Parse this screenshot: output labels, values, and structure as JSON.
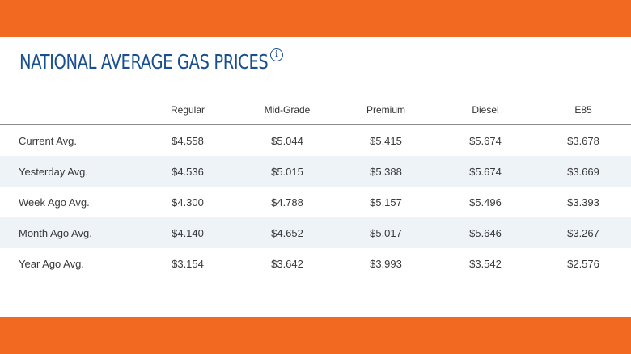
{
  "title": "NATIONAL AVERAGE GAS PRICES",
  "info_icon": "info-icon",
  "colors": {
    "accent_orange": "#f26a22",
    "title_blue": "#1a4f8f",
    "row_stripe": "#eef3f8"
  },
  "table": {
    "headers": [
      "",
      "Regular",
      "Mid-Grade",
      "Premium",
      "Diesel",
      "E85"
    ],
    "rows": [
      {
        "label": "Current Avg.",
        "values": [
          "$4.558",
          "$5.044",
          "$5.415",
          "$5.674",
          "$3.678"
        ]
      },
      {
        "label": "Yesterday Avg.",
        "values": [
          "$4.536",
          "$5.015",
          "$5.388",
          "$5.674",
          "$3.669"
        ]
      },
      {
        "label": "Week Ago Avg.",
        "values": [
          "$4.300",
          "$4.788",
          "$5.157",
          "$5.496",
          "$3.393"
        ]
      },
      {
        "label": "Month Ago Avg.",
        "values": [
          "$4.140",
          "$4.652",
          "$5.017",
          "$5.646",
          "$3.267"
        ]
      },
      {
        "label": "Year Ago Avg.",
        "values": [
          "$3.154",
          "$3.642",
          "$3.993",
          "$3.542",
          "$2.576"
        ]
      }
    ]
  }
}
